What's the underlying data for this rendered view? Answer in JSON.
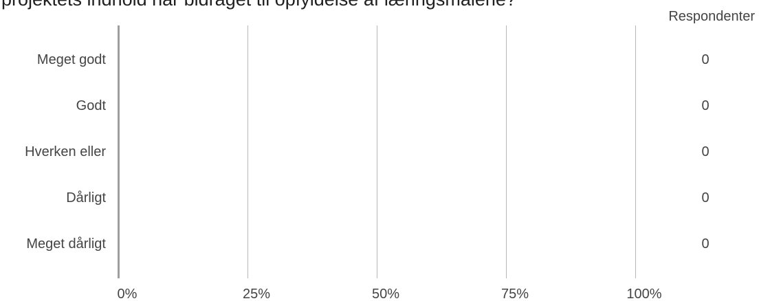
{
  "chart_data": {
    "type": "bar",
    "orientation": "horizontal",
    "title": "projektets indhold har bidraget til opfyldelse af læringsmålene?",
    "categories": [
      "Meget godt",
      "Godt",
      "Hverken eller",
      "Dårligt",
      "Meget dårligt"
    ],
    "values": [
      0,
      0,
      0,
      0,
      0
    ],
    "value_column_header": "Respondenter",
    "respondents": [
      0,
      0,
      0,
      0,
      0
    ],
    "x_ticks": [
      "0%",
      "25%",
      "50%",
      "75%",
      "100%"
    ],
    "xlim": [
      0,
      100
    ],
    "grid": true,
    "legend": "none",
    "colors": {
      "bar": "#4285f4",
      "grid": "#b7b7b7",
      "axis": "#9e9e9e",
      "text": "#444444"
    }
  }
}
